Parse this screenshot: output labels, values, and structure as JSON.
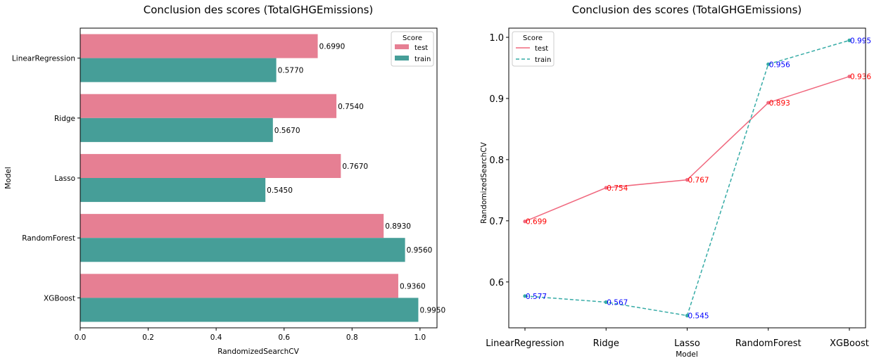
{
  "chart_data": [
    {
      "type": "bar",
      "orientation": "horizontal",
      "title": "Conclusion des scores (TotalGHGEmissions)",
      "xlabel": "RandomizedSearchCV",
      "ylabel": "Model",
      "categories": [
        "LinearRegression",
        "Ridge",
        "Lasso",
        "RandomForest",
        "XGBoost"
      ],
      "xlim": [
        0,
        1.05
      ],
      "xticks": [
        "0.0",
        "0.2",
        "0.4",
        "0.6",
        "0.8",
        "1.0"
      ],
      "series": [
        {
          "name": "test",
          "color": "#e67f93",
          "values": [
            0.699,
            0.754,
            0.767,
            0.893,
            0.936
          ],
          "labels": [
            "0.6990",
            "0.7540",
            "0.7670",
            "0.8930",
            "0.9360"
          ]
        },
        {
          "name": "train",
          "color": "#469e98",
          "values": [
            0.577,
            0.567,
            0.545,
            0.956,
            0.995
          ],
          "labels": [
            "0.5770",
            "0.5670",
            "0.5450",
            "0.9560",
            "0.9950"
          ]
        }
      ],
      "legend": {
        "title": "Score",
        "position": "top-right"
      }
    },
    {
      "type": "line",
      "title": "Conclusion des scores (TotalGHGEmissions)",
      "xlabel": "Model",
      "ylabel": "RandomizedSearchCV",
      "categories": [
        "LinearRegression",
        "Ridge",
        "Lasso",
        "RandomForest",
        "XGBoost"
      ],
      "ylim": [
        0.525,
        1.015
      ],
      "yticks": [
        "0.6",
        "0.7",
        "0.8",
        "0.9",
        "1.0"
      ],
      "series": [
        {
          "name": "test",
          "color": "#f0687e",
          "label_color": "#ff0000",
          "style": "solid",
          "values": [
            0.699,
            0.754,
            0.767,
            0.893,
            0.936
          ],
          "labels": [
            "0.699",
            "0.754",
            "0.767",
            "0.893",
            "0.936"
          ]
        },
        {
          "name": "train",
          "color": "#36aba6",
          "label_color": "#0000ff",
          "style": "dashed",
          "values": [
            0.577,
            0.567,
            0.545,
            0.956,
            0.995
          ],
          "labels": [
            "0.577",
            "0.567",
            "0.545",
            "0.956",
            "0.995"
          ]
        }
      ],
      "legend": {
        "title": "Score",
        "position": "top-left"
      }
    }
  ]
}
